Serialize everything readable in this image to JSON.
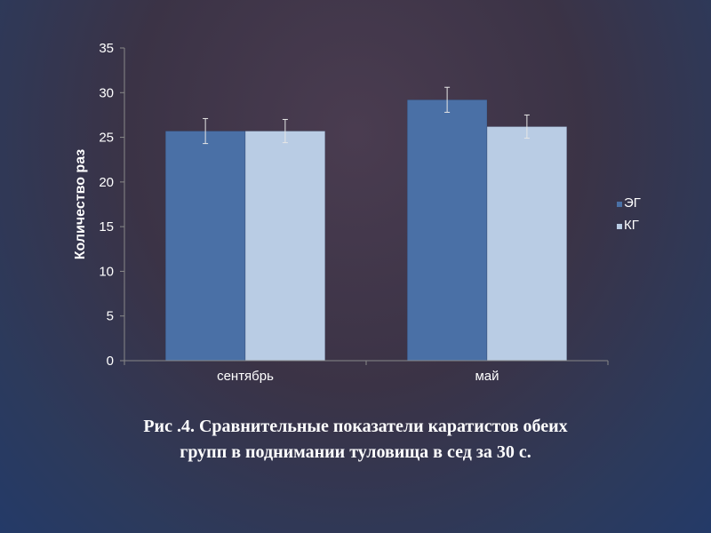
{
  "chart_data": {
    "type": "bar",
    "categories": [
      "сентябрь",
      "май"
    ],
    "series": [
      {
        "name": "ЭГ",
        "values": [
          25.7,
          29.2
        ],
        "errors": [
          1.4,
          1.4
        ],
        "color": "#4a70a6"
      },
      {
        "name": "КГ",
        "values": [
          25.7,
          26.2
        ],
        "errors": [
          1.3,
          1.3
        ],
        "color": "#b9cce4"
      }
    ],
    "ylabel": "Количество раз",
    "ylim": [
      0,
      35
    ],
    "yticks": [
      0,
      5,
      10,
      15,
      20,
      25,
      30,
      35
    ],
    "legend_position": "right",
    "grid": false,
    "axis_color": "#888888"
  },
  "caption": {
    "line1": "Рис .4. Сравнительные показатели каратистов обеих",
    "line2": "групп в поднимании туловища в сед за 30 с."
  }
}
